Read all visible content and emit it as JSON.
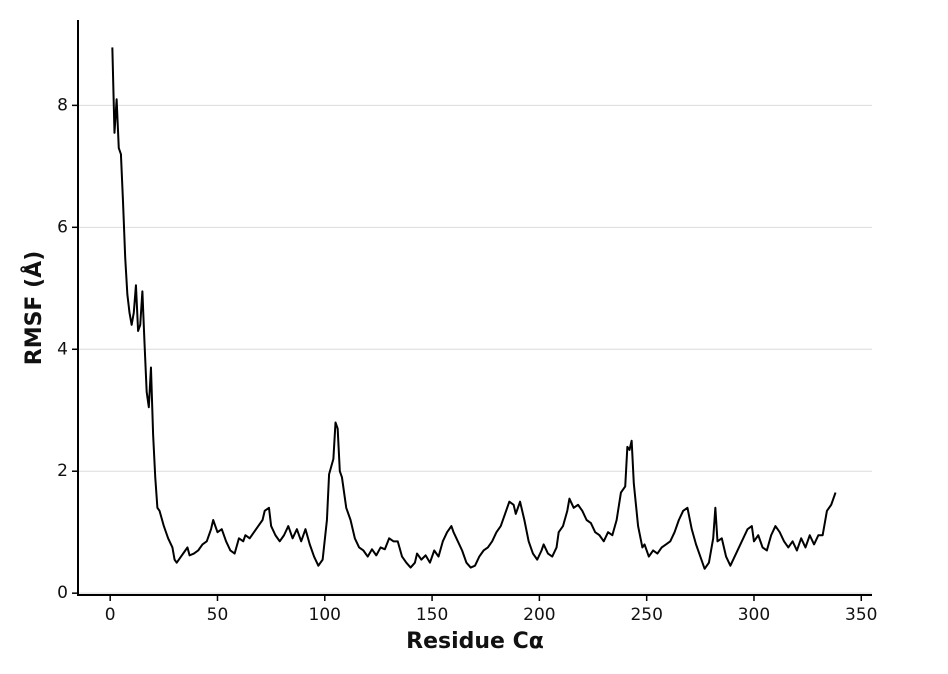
{
  "chart_data": {
    "type": "line",
    "xlabel": "Residue Cα",
    "ylabel": "RMSF (Å)",
    "x": [
      1,
      2,
      3,
      4,
      5,
      6,
      7,
      8,
      9,
      10,
      11,
      12,
      13,
      14,
      15,
      16,
      17,
      18,
      19,
      20,
      21,
      22,
      23,
      25,
      27,
      29,
      30,
      31,
      33,
      35,
      36,
      37,
      39,
      41,
      43,
      45,
      47,
      48,
      50,
      52,
      54,
      56,
      58,
      60,
      62,
      63,
      65,
      67,
      69,
      71,
      72,
      74,
      75,
      77,
      79,
      81,
      83,
      85,
      87,
      89,
      91,
      93,
      95,
      97,
      99,
      101,
      102,
      104,
      105,
      106,
      107,
      108,
      110,
      112,
      114,
      116,
      118,
      120,
      122,
      124,
      126,
      128,
      130,
      132,
      134,
      136,
      138,
      140,
      142,
      143,
      145,
      147,
      149,
      151,
      153,
      155,
      157,
      159,
      160,
      162,
      164,
      166,
      168,
      170,
      172,
      174,
      176,
      178,
      180,
      182,
      184,
      186,
      188,
      189,
      191,
      193,
      195,
      197,
      199,
      201,
      202,
      204,
      206,
      208,
      209,
      211,
      213,
      214,
      216,
      218,
      220,
      222,
      224,
      226,
      228,
      230,
      232,
      234,
      236,
      238,
      240,
      241,
      242,
      243,
      244,
      246,
      248,
      249,
      251,
      253,
      255,
      257,
      259,
      261,
      263,
      265,
      267,
      269,
      271,
      273,
      275,
      277,
      279,
      281,
      282,
      283,
      285,
      287,
      289,
      291,
      293,
      295,
      297,
      299,
      300,
      302,
      304,
      306,
      308,
      310,
      312,
      314,
      316,
      318,
      320,
      322,
      324,
      326,
      328,
      330,
      332,
      334,
      336,
      338
    ],
    "values": [
      8.95,
      7.55,
      8.1,
      7.3,
      7.2,
      6.4,
      5.5,
      4.9,
      4.6,
      4.4,
      4.6,
      5.05,
      4.3,
      4.4,
      4.95,
      4.1,
      3.3,
      3.05,
      3.7,
      2.6,
      1.9,
      1.4,
      1.35,
      1.1,
      0.9,
      0.75,
      0.55,
      0.5,
      0.6,
      0.7,
      0.75,
      0.62,
      0.65,
      0.7,
      0.8,
      0.85,
      1.05,
      1.2,
      1.0,
      1.05,
      0.85,
      0.7,
      0.65,
      0.9,
      0.85,
      0.95,
      0.9,
      1.0,
      1.1,
      1.2,
      1.35,
      1.4,
      1.1,
      0.95,
      0.85,
      0.95,
      1.1,
      0.9,
      1.05,
      0.85,
      1.05,
      0.8,
      0.6,
      0.45,
      0.55,
      1.2,
      1.95,
      2.2,
      2.8,
      2.7,
      2.0,
      1.9,
      1.4,
      1.2,
      0.9,
      0.75,
      0.7,
      0.6,
      0.72,
      0.62,
      0.75,
      0.72,
      0.9,
      0.85,
      0.85,
      0.6,
      0.5,
      0.42,
      0.5,
      0.65,
      0.55,
      0.62,
      0.5,
      0.7,
      0.6,
      0.85,
      1.0,
      1.1,
      1.0,
      0.85,
      0.7,
      0.5,
      0.42,
      0.45,
      0.6,
      0.7,
      0.75,
      0.85,
      1.0,
      1.1,
      1.3,
      1.5,
      1.45,
      1.3,
      1.5,
      1.2,
      0.85,
      0.65,
      0.55,
      0.7,
      0.8,
      0.65,
      0.6,
      0.75,
      1.0,
      1.1,
      1.35,
      1.55,
      1.4,
      1.45,
      1.35,
      1.2,
      1.15,
      1.0,
      0.95,
      0.85,
      1.0,
      0.95,
      1.2,
      1.65,
      1.75,
      2.4,
      2.35,
      2.5,
      1.8,
      1.1,
      0.75,
      0.8,
      0.6,
      0.7,
      0.65,
      0.75,
      0.8,
      0.85,
      1.0,
      1.2,
      1.35,
      1.4,
      1.05,
      0.8,
      0.6,
      0.4,
      0.5,
      0.9,
      1.4,
      0.85,
      0.9,
      0.6,
      0.45,
      0.6,
      0.75,
      0.9,
      1.05,
      1.1,
      0.85,
      0.95,
      0.75,
      0.7,
      0.95,
      1.1,
      1.0,
      0.85,
      0.75,
      0.85,
      0.7,
      0.9,
      0.75,
      0.95,
      0.8,
      0.95,
      0.95,
      1.35,
      1.45,
      1.65
    ],
    "color": "#000000",
    "xlim": [
      -15,
      355
    ],
    "ylim": [
      -0.03,
      9.4
    ],
    "xticks": [
      0,
      50,
      100,
      150,
      200,
      250,
      300,
      350
    ],
    "yticks": [
      0,
      2,
      4,
      6,
      8
    ],
    "grid": true
  }
}
